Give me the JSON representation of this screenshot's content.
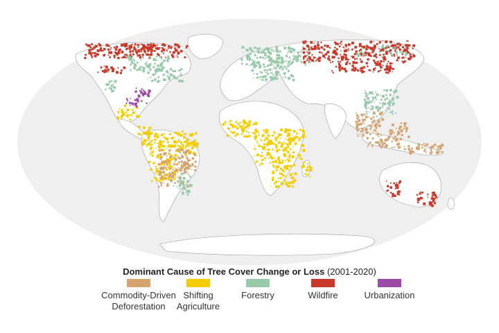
{
  "legend": {
    "title_bold": "Dominant Cause of Tree Cover Change or Loss",
    "title_suffix": " (2001-2020)",
    "items": [
      {
        "lines": [
          "Commodity-Driven",
          "Deforestation"
        ],
        "color": "#d4a571"
      },
      {
        "lines": [
          "Shifting",
          "Agriculture"
        ],
        "color": "#f5cc00"
      },
      {
        "lines": [
          "Forestry"
        ],
        "color": "#98c9aa"
      },
      {
        "lines": [
          "Wildfire"
        ],
        "color": "#c8392a"
      },
      {
        "lines": [
          "Urbanization"
        ],
        "color": "#9b4aa6"
      }
    ]
  },
  "map": {
    "ocean_color": "#efefef",
    "land_color": "#ffffff",
    "border_color": "#8a8a8a",
    "regions": [
      {
        "name": "north-american-boreal",
        "cause": 3,
        "color": "#c8392a"
      },
      {
        "name": "canadian-forestry",
        "cause": 2,
        "color": "#98c9aa"
      },
      {
        "name": "eastern-us",
        "cause": 4,
        "color": "#9b4aa6"
      },
      {
        "name": "central-america",
        "cause": 1,
        "color": "#f5cc00"
      },
      {
        "name": "amazon",
        "cause": 1,
        "color": "#f5cc00"
      },
      {
        "name": "brazil-cerrado",
        "cause": 0,
        "color": "#d4a571"
      },
      {
        "name": "atlantic-forest",
        "cause": 2,
        "color": "#98c9aa"
      },
      {
        "name": "west-africa",
        "cause": 1,
        "color": "#f5cc00"
      },
      {
        "name": "congo-basin",
        "cause": 1,
        "color": "#f5cc00"
      },
      {
        "name": "madagascar",
        "cause": 1,
        "color": "#f5cc00"
      },
      {
        "name": "scandinavia-russia-forestry",
        "cause": 2,
        "color": "#98c9aa"
      },
      {
        "name": "siberia-wildfire",
        "cause": 3,
        "color": "#c8392a"
      },
      {
        "name": "china-forestry",
        "cause": 2,
        "color": "#98c9aa"
      },
      {
        "name": "southeast-asia",
        "cause": 0,
        "color": "#d4a571"
      },
      {
        "name": "indonesia",
        "cause": 0,
        "color": "#d4a571"
      },
      {
        "name": "australia-wildfire",
        "cause": 3,
        "color": "#c8392a"
      }
    ]
  }
}
